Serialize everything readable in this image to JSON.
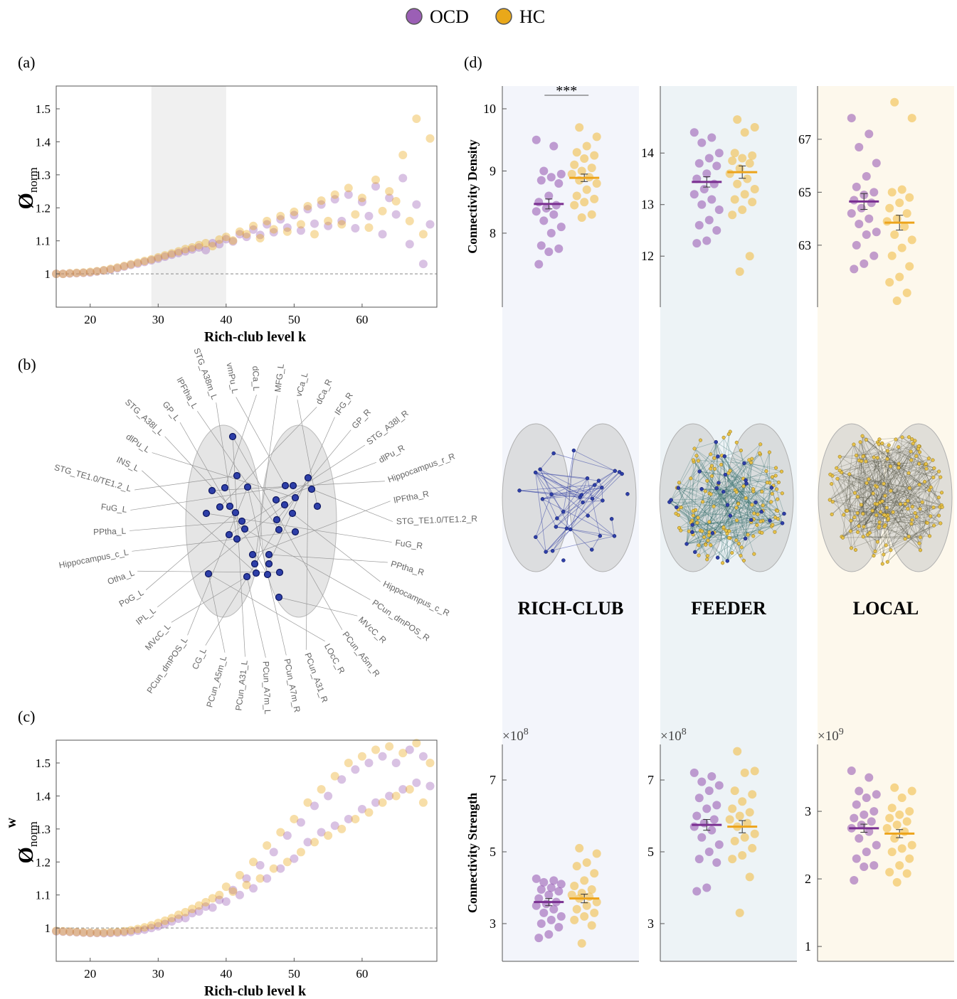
{
  "legend": {
    "items": [
      {
        "name": "OCD",
        "color": "#9b5fb5"
      },
      {
        "name": "HC",
        "color": "#e9a81a"
      }
    ]
  },
  "brain_map": {
    "panel_label": "(b)",
    "regions": [
      "PCun_A31_L",
      "PCun_A5m_L",
      "CG_L",
      "PCun_dmPOS_L",
      "MVcC_L",
      "IPL_L",
      "PoG_L",
      "Otha_L",
      "Hippocampus_c_L",
      "PPtha_L",
      "FuG_L",
      "STG_TE1.0/TE1.2_L",
      "INS_L",
      "dlPu_L",
      "STG_A38l_L",
      "GP_L",
      "lPFtha_L",
      "STG_A38m_L",
      "vmPu_L",
      "dCa_L",
      "MFG_L",
      "vCa_L",
      "dCa_R",
      "IFG_R",
      "GP_R",
      "STG_A38l_R",
      "dlPu_R",
      "Hippocampus_r_R",
      "lPFtha_R",
      "STG_TE1.0/TE1.2_R",
      "FuG_R",
      "PPtha_R",
      "Hippocampus_c_R",
      "PCun_dmPOS_R",
      "MVcC_R",
      "PCun_A5m_R",
      "LOcC_R",
      "PCun_A31_R",
      "PCun_A7m_R",
      "PCun_A7m_L"
    ]
  },
  "panel_d": {
    "panel_label": "(d)",
    "columns": [
      {
        "label": "RICH-CLUB",
        "background": "#f3f5fb"
      },
      {
        "label": "FEEDER",
        "background": "#edf3f6"
      },
      {
        "label": "LOCAL",
        "background": "#fdf8ec"
      }
    ]
  },
  "chart_data": [
    {
      "type": "scatter",
      "panel_label": "(a)",
      "xlabel": "Rich-club level k",
      "ylabel": {
        "base": "Ø",
        "sub": "norm"
      },
      "x": [
        15,
        16,
        17,
        18,
        19,
        20,
        21,
        22,
        23,
        24,
        25,
        26,
        27,
        28,
        29,
        30,
        31,
        32,
        33,
        34,
        35,
        36,
        37,
        38,
        39,
        40,
        41,
        42,
        43,
        44,
        45,
        46,
        47,
        48,
        49,
        50,
        51,
        52,
        53,
        54,
        55,
        56,
        57,
        58,
        59,
        60,
        61,
        62,
        63,
        64,
        65,
        66,
        67,
        68,
        69,
        70
      ],
      "series": [
        {
          "color": "#9b5fb5",
          "values": [
            1.0,
            1.0,
            1.001,
            1.002,
            1.003,
            1.004,
            1.007,
            1.01,
            1.013,
            1.017,
            1.022,
            1.027,
            1.031,
            1.036,
            1.041,
            1.046,
            1.052,
            1.058,
            1.063,
            1.068,
            1.074,
            1.08,
            1.072,
            1.093,
            1.09,
            1.105,
            1.098,
            1.12,
            1.112,
            1.134,
            1.118,
            1.15,
            1.126,
            1.165,
            1.14,
            1.178,
            1.131,
            1.196,
            1.152,
            1.21,
            1.145,
            1.226,
            1.16,
            1.24,
            1.138,
            1.218,
            1.175,
            1.265,
            1.12,
            1.23,
            1.18,
            1.29,
            1.09,
            1.21,
            1.03,
            1.15
          ]
        },
        {
          "color": "#e9a81a",
          "values": [
            1.0,
            1.0,
            1.002,
            1.003,
            1.004,
            1.006,
            1.008,
            1.011,
            1.015,
            1.019,
            1.024,
            1.029,
            1.034,
            1.039,
            1.044,
            1.05,
            1.056,
            1.062,
            1.068,
            1.075,
            1.08,
            1.087,
            1.093,
            1.084,
            1.104,
            1.112,
            1.101,
            1.128,
            1.12,
            1.145,
            1.108,
            1.16,
            1.135,
            1.175,
            1.128,
            1.188,
            1.15,
            1.205,
            1.12,
            1.222,
            1.16,
            1.24,
            1.15,
            1.26,
            1.18,
            1.23,
            1.14,
            1.285,
            1.19,
            1.25,
            1.22,
            1.36,
            1.16,
            1.47,
            1.12,
            1.41
          ]
        }
      ],
      "xlim": [
        15,
        71
      ],
      "ylim": [
        0.899,
        1.569
      ],
      "xticks": [
        20,
        30,
        40,
        50,
        60
      ],
      "yticks": [
        1,
        1.1,
        1.2,
        1.3,
        1.4,
        1.5
      ],
      "reference_line": 1,
      "shaded_region": [
        29,
        40
      ]
    },
    {
      "type": "scatter",
      "panel_label": "(c)",
      "xlabel": "Rich-club level k",
      "ylabel": {
        "base": "Ø",
        "sub": "norm",
        "sup": "w"
      },
      "x": [
        15,
        16,
        17,
        18,
        19,
        20,
        21,
        22,
        23,
        24,
        25,
        26,
        27,
        28,
        29,
        30,
        31,
        32,
        33,
        34,
        35,
        36,
        37,
        38,
        39,
        40,
        41,
        42,
        43,
        44,
        45,
        46,
        47,
        48,
        49,
        50,
        51,
        52,
        53,
        54,
        55,
        56,
        57,
        58,
        59,
        60,
        61,
        62,
        63,
        64,
        65,
        66,
        67,
        68,
        69,
        70
      ],
      "series": [
        {
          "color": "#9b5fb5",
          "values": [
            0.99,
            0.989,
            0.988,
            0.987,
            0.986,
            0.985,
            0.985,
            0.984,
            0.985,
            0.986,
            0.987,
            0.988,
            0.992,
            0.995,
            1.0,
            1.005,
            1.012,
            1.02,
            1.028,
            1.03,
            1.045,
            1.05,
            1.065,
            1.062,
            1.085,
            1.08,
            1.115,
            1.1,
            1.15,
            1.12,
            1.19,
            1.15,
            1.23,
            1.18,
            1.28,
            1.21,
            1.32,
            1.26,
            1.37,
            1.29,
            1.4,
            1.31,
            1.45,
            1.33,
            1.48,
            1.36,
            1.5,
            1.38,
            1.52,
            1.4,
            1.5,
            1.42,
            1.54,
            1.44,
            1.52,
            1.43
          ]
        },
        {
          "color": "#e9a81a",
          "values": [
            0.991,
            0.99,
            0.989,
            0.988,
            0.987,
            0.986,
            0.986,
            0.986,
            0.987,
            0.988,
            0.99,
            0.993,
            0.997,
            1.002,
            1.008,
            1.015,
            1.022,
            1.03,
            1.04,
            1.048,
            1.058,
            1.068,
            1.078,
            1.09,
            1.1,
            1.125,
            1.11,
            1.16,
            1.13,
            1.2,
            1.15,
            1.25,
            1.18,
            1.29,
            1.2,
            1.33,
            1.23,
            1.38,
            1.26,
            1.42,
            1.28,
            1.46,
            1.3,
            1.5,
            1.33,
            1.52,
            1.35,
            1.54,
            1.38,
            1.55,
            1.4,
            1.53,
            1.42,
            1.56,
            1.38,
            1.5
          ]
        }
      ],
      "xlim": [
        15,
        71
      ],
      "ylim": [
        0.899,
        1.569
      ],
      "xticks": [
        20,
        30,
        40,
        50,
        60
      ],
      "yticks": [
        1,
        1.1,
        1.2,
        1.3,
        1.4,
        1.5
      ],
      "reference_line": 1
    },
    {
      "type": "strip",
      "ylabel": "Connectivity Density",
      "ylim": [
        6.81,
        10.366
      ],
      "yticks": [
        8,
        9,
        10
      ],
      "significance": "***",
      "series": [
        {
          "color": "#9b5fb5",
          "mean_color": "#7a2f91",
          "mean": 8.47,
          "sem": 0.08,
          "values": [
            9.5,
            9.4,
            9.0,
            8.95,
            8.9,
            8.85,
            8.8,
            8.6,
            8.5,
            8.45,
            8.4,
            8.35,
            8.3,
            8.2,
            8.1,
            8.0,
            7.8,
            7.75,
            7.7,
            7.5
          ]
        },
        {
          "color": "#f2be4a",
          "mean_color": "#eda41b",
          "mean": 8.89,
          "sem": 0.06,
          "values": [
            9.7,
            9.55,
            9.4,
            9.3,
            9.25,
            9.2,
            9.1,
            9.05,
            9.0,
            8.95,
            8.9,
            8.85,
            8.8,
            8.7,
            8.6,
            8.55,
            8.5,
            8.45,
            8.3,
            8.25
          ]
        }
      ]
    },
    {
      "type": "strip",
      "ylim": [
        11.01,
        15.3
      ],
      "yticks": [
        12,
        13,
        14
      ],
      "series": [
        {
          "color": "#9b5fb5",
          "mean_color": "#7a2f91",
          "mean": 13.44,
          "sem": 0.1,
          "values": [
            14.4,
            14.3,
            14.2,
            14.0,
            13.9,
            13.8,
            13.75,
            13.6,
            13.5,
            13.4,
            13.3,
            13.2,
            13.1,
            13.0,
            12.9,
            12.7,
            12.6,
            12.5,
            12.3,
            12.25
          ]
        },
        {
          "color": "#f2be4a",
          "mean_color": "#eda41b",
          "mean": 13.63,
          "sem": 0.12,
          "values": [
            14.65,
            14.5,
            14.4,
            14.0,
            13.95,
            13.9,
            13.85,
            13.8,
            13.7,
            13.6,
            13.5,
            13.4,
            13.3,
            13.2,
            13.1,
            13.05,
            12.9,
            12.8,
            12.0,
            11.7
          ]
        }
      ]
    },
    {
      "type": "strip",
      "ylim": [
        60.66,
        69.01
      ],
      "yticks": [
        63,
        65,
        67
      ],
      "series": [
        {
          "color": "#9b5fb5",
          "mean_color": "#7a2f91",
          "mean": 64.65,
          "sem": 0.3,
          "values": [
            67.8,
            67.2,
            66.7,
            66.1,
            65.6,
            65.2,
            65.0,
            64.9,
            64.7,
            64.6,
            64.4,
            64.2,
            64.0,
            63.8,
            63.5,
            63.4,
            63.0,
            62.6,
            62.3,
            62.1
          ]
        },
        {
          "color": "#f2be4a",
          "mean_color": "#eda41b",
          "mean": 63.85,
          "sem": 0.28,
          "values": [
            68.4,
            67.8,
            65.1,
            65.0,
            64.8,
            64.6,
            64.4,
            64.2,
            64.0,
            63.9,
            63.7,
            63.4,
            63.2,
            62.9,
            62.6,
            62.2,
            61.8,
            61.6,
            61.2,
            60.9
          ]
        }
      ]
    },
    {
      "type": "strip",
      "ylabel": "Connectivity Strength",
      "multiplier": {
        "base": "×10",
        "exponent": "8"
      },
      "ylim": [
        1.95,
        7.99
      ],
      "yticks": [
        3,
        5,
        7
      ],
      "series": [
        {
          "color": "#9b5fb5",
          "mean_color": "#7a2f91",
          "mean": 3.6,
          "sem": 0.1,
          "values": [
            4.25,
            4.2,
            4.15,
            4.1,
            4.0,
            3.95,
            3.9,
            3.8,
            3.7,
            3.6,
            3.55,
            3.5,
            3.4,
            3.3,
            3.2,
            3.1,
            3.0,
            2.9,
            2.7,
            2.6
          ]
        },
        {
          "color": "#f2be4a",
          "mean_color": "#eda41b",
          "mean": 3.7,
          "sem": 0.12,
          "values": [
            5.1,
            4.95,
            4.7,
            4.6,
            4.4,
            4.2,
            4.05,
            3.95,
            3.85,
            3.8,
            3.75,
            3.7,
            3.6,
            3.5,
            3.4,
            3.3,
            3.2,
            3.1,
            2.95,
            2.45
          ]
        }
      ]
    },
    {
      "type": "strip",
      "multiplier": {
        "base": "×10",
        "exponent": "8"
      },
      "ylim": [
        1.95,
        7.99
      ],
      "yticks": [
        3,
        5,
        7
      ],
      "series": [
        {
          "color": "#9b5fb5",
          "mean_color": "#7a2f91",
          "mean": 5.75,
          "sem": 0.15,
          "values": [
            7.2,
            7.1,
            6.95,
            6.85,
            6.7,
            6.5,
            6.3,
            6.2,
            6.0,
            5.9,
            5.8,
            5.7,
            5.6,
            5.4,
            5.2,
            5.0,
            4.8,
            4.7,
            4.0,
            3.9
          ]
        },
        {
          "color": "#f2be4a",
          "mean_color": "#eda41b",
          "mean": 5.7,
          "sem": 0.17,
          "values": [
            7.8,
            7.25,
            7.2,
            6.7,
            6.6,
            6.4,
            6.2,
            6.1,
            6.0,
            5.9,
            5.8,
            5.7,
            5.5,
            5.4,
            5.3,
            5.1,
            4.9,
            4.8,
            4.3,
            3.3
          ]
        }
      ]
    },
    {
      "type": "strip",
      "multiplier": {
        "base": "×10",
        "exponent": "9"
      },
      "ylim": [
        0.78,
        3.99
      ],
      "yticks": [
        1,
        2,
        3
      ],
      "series": [
        {
          "color": "#9b5fb5",
          "mean_color": "#7a2f91",
          "mean": 2.75,
          "sem": 0.06,
          "values": [
            3.6,
            3.5,
            3.3,
            3.25,
            3.2,
            3.1,
            3.0,
            2.95,
            2.9,
            2.85,
            2.8,
            2.75,
            2.7,
            2.6,
            2.5,
            2.4,
            2.3,
            2.2,
            2.18,
            1.98
          ]
        },
        {
          "color": "#f2be4a",
          "mean_color": "#eda41b",
          "mean": 2.67,
          "sem": 0.06,
          "values": [
            3.35,
            3.3,
            3.2,
            3.05,
            3.0,
            2.95,
            2.9,
            2.85,
            2.8,
            2.75,
            2.7,
            2.6,
            2.5,
            2.45,
            2.4,
            2.3,
            2.2,
            2.1,
            2.08,
            1.95
          ]
        }
      ]
    }
  ]
}
